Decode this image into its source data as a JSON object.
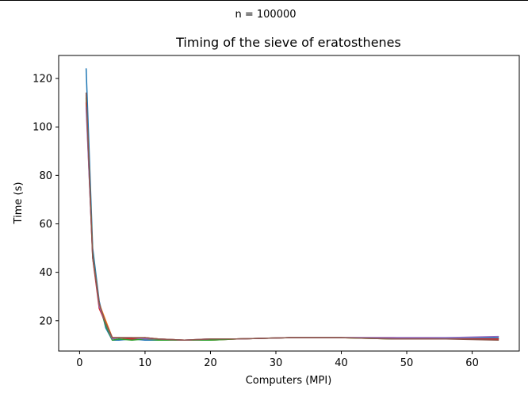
{
  "chart_data": {
    "type": "line",
    "suptitle": "n = 100000",
    "title": "Timing of the sieve of eratosthenes",
    "xlabel": "Computers (MPI)",
    "ylabel": "Time (s)",
    "xlim": [
      -3.2,
      67.2
    ],
    "ylim": [
      7.5,
      129.5
    ],
    "xticks": [
      0,
      10,
      20,
      30,
      40,
      50,
      60
    ],
    "yticks": [
      20,
      40,
      60,
      80,
      100,
      120
    ],
    "grid": false,
    "legend": "none",
    "series": [
      {
        "color": "#1f77b4",
        "x": [
          1,
          2,
          3,
          4,
          5,
          6,
          8,
          10,
          12,
          16,
          20,
          24,
          32,
          40,
          48,
          56,
          64
        ],
        "y": [
          124,
          50,
          28,
          17,
          12,
          12,
          12.5,
          12,
          12,
          12,
          12,
          12.5,
          13,
          13,
          13,
          13,
          13
        ]
      },
      {
        "color": "#ff7f0e",
        "x": [
          1,
          2,
          3,
          4,
          5,
          6,
          8,
          10,
          12,
          16,
          20,
          24,
          32,
          40,
          48,
          56,
          64
        ],
        "y": [
          113,
          47,
          27,
          20,
          13,
          13,
          13,
          13,
          12.5,
          12,
          12,
          12.5,
          13,
          13,
          12.5,
          12.5,
          12.5
        ]
      },
      {
        "color": "#2ca02c",
        "x": [
          1,
          2,
          3,
          4,
          5,
          6,
          8,
          10,
          12,
          16,
          20,
          24,
          32,
          40,
          48,
          56,
          64
        ],
        "y": [
          112,
          48,
          26,
          18,
          12,
          12.5,
          12,
          12.5,
          12,
          12,
          12,
          12.5,
          13,
          13,
          12.5,
          12.5,
          12.5
        ]
      },
      {
        "color": "#d62728",
        "x": [
          1,
          2,
          3,
          4,
          5,
          6,
          8,
          10,
          12,
          16,
          20,
          24,
          32,
          40,
          48,
          56,
          64
        ],
        "y": [
          110,
          46,
          25,
          19,
          13,
          13,
          12.5,
          13,
          12.5,
          12,
          12.5,
          12.5,
          13,
          13,
          13,
          12.5,
          12.5
        ]
      },
      {
        "color": "#9467bd",
        "x": [
          1,
          2,
          3,
          4,
          5,
          6,
          8,
          10,
          12,
          16,
          20,
          24,
          32,
          40,
          48,
          56,
          64
        ],
        "y": [
          108,
          47,
          26,
          19,
          12.5,
          13,
          13,
          12.5,
          12.5,
          12,
          12.5,
          12.5,
          13,
          13,
          13,
          13,
          13.5
        ]
      },
      {
        "color": "#8c564b",
        "x": [
          1,
          2,
          3,
          4,
          5,
          6,
          8,
          10,
          12,
          16,
          20,
          24,
          32,
          40,
          48,
          56,
          64
        ],
        "y": [
          114,
          46,
          27,
          19,
          13,
          13,
          13,
          13,
          12.5,
          12,
          12.5,
          12.5,
          13,
          13,
          12.5,
          12.5,
          12
        ]
      }
    ]
  }
}
